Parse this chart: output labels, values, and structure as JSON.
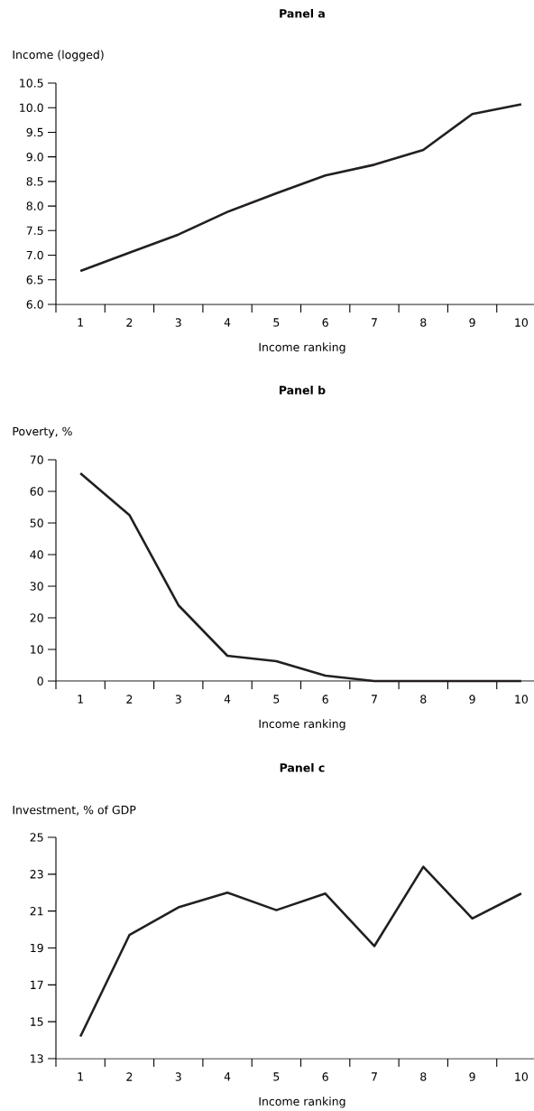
{
  "chart_data": [
    {
      "type": "line",
      "title": "Panel a",
      "ylabel": "Income (logged)",
      "xlabel": "Income ranking",
      "categories": [
        "1",
        "2",
        "3",
        "4",
        "5",
        "6",
        "7",
        "8",
        "9",
        "10"
      ],
      "series": [
        {
          "color": "#231f20",
          "values": [
            6.68,
            7.05,
            7.42,
            7.88,
            8.26,
            8.62,
            8.84,
            9.14,
            9.87,
            10.07
          ]
        }
      ],
      "ylim": [
        6,
        10.5
      ],
      "yticks": [
        {
          "value": 6,
          "label": "6.0"
        },
        6.5,
        {
          "value": 7,
          "label": "7.0"
        },
        7.5,
        {
          "value": 8,
          "label": "8.0"
        },
        8.5,
        {
          "value": 9,
          "label": "9.0"
        },
        9.5,
        {
          "value": 10,
          "label": "10.0"
        },
        10.5
      ]
    },
    {
      "type": "line",
      "title": "Panel b",
      "ylabel": "Poverty, %",
      "xlabel": "Income ranking",
      "categories": [
        "1",
        "2",
        "3",
        "4",
        "5",
        "6",
        "7",
        "8",
        "9",
        "10"
      ],
      "series": [
        {
          "color": "#231f20",
          "values": [
            65.7,
            52.5,
            24,
            8,
            6.3,
            1.7,
            0,
            0,
            0,
            0
          ]
        }
      ],
      "ylim": [
        0,
        70
      ],
      "yticks": [
        0,
        10,
        20,
        30,
        40,
        50,
        60,
        70
      ]
    },
    {
      "type": "line",
      "title": "Panel c",
      "ylabel": "Investment, % of GDP",
      "xlabel": "Income ranking",
      "categories": [
        "1",
        "2",
        "3",
        "4",
        "5",
        "6",
        "7",
        "8",
        "9",
        "10"
      ],
      "series": [
        {
          "color": "#231f20",
          "values": [
            14.2,
            19.7,
            21.2,
            22,
            21.05,
            21.95,
            19.1,
            23.4,
            20.6,
            21.95
          ]
        }
      ],
      "ylim": [
        13,
        25
      ],
      "yticks": [
        13,
        15,
        17,
        19,
        21,
        23,
        25
      ]
    }
  ]
}
